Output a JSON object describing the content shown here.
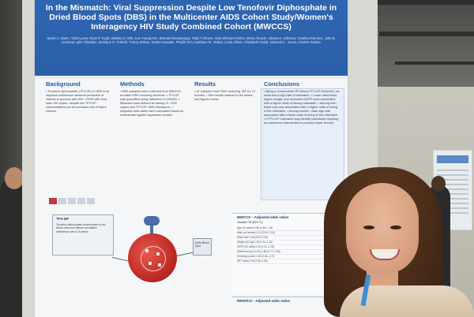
{
  "poster": {
    "title": "In the Mismatch: Viral Suppression Despite Low Tenofovir Diphosphate in Dried Blood Spots (DBS) in the Multicenter AIDS Cohort Study/Women's Interagency HIV Study Combined Cohort (MWCCS)",
    "authors": "Sarah C. Mann, Todd Lyons, Ryan P. Inglis, Mallory D. Witt, Sue-Young Kim, Bernard Macatangay, Todd T. Brown, Anita Dhanani-Delvo, Maria Alcaide, Adaora A. Adimora, Catalina Ramirez, Julie B. Dumond, Igho Ofotokun, Monique R. Cottrell, Tracey Wilson, Stefan Kaeplan, Phyllis Tien, Kathleen M. Weber, Linda Allison, Elizabeth Golub, Deborah L. Jones, Charles Rabkin",
    "sections": {
      "background": {
        "heading": "Background",
        "body": "• Tenofovir diphosphate (TFV-DP) in DBS is an objective adherence measure predictive of viremia in persons with HIV. • PWH with viral load <50 copies, despite low TFV-DP concentrations are at increased risk of future viremia."
      },
      "methods": {
        "heading": "Methods",
        "body": "• DBS samples were collected from MWCCS enrollee PWH receiving tenofovir. • TFV-DP was quantified using validated LC-MS/MS. • Mismatch was defined as having VL <200 copies and TFV-DP <800 fmol/punch. • Adjusted odds ratios were calculated based on multivariate logistic regression models."
      },
      "results": {
        "heading": "Results",
        "body": "• 87 samples from PWH receiving TAF for 12 months. • See results outlined in the tables and figures below."
      },
      "conclusions": {
        "heading": "Conclusions",
        "body": "• Being a conservative PK-based TFV-DP threshold, we observed a high rate of mismatch. • Lower adherence, higher weight, and increased eGFR were associated with a higher odds of having mismatch. • Among men, black race was associated with a higher odds of being in the mismatch. • Among women, older age was associated with a lower odds of being in the mismatch. • If TFV-DP mismatch may identify individuals requiring an adherence intervention to prevent future viremia."
      }
    },
    "diagram": {
      "frame_title": "TFV-DP",
      "frame_text": "Tenofovir diphosphate accumulates in red blood cells and reflects cumulative adherence over 6–8 weeks",
      "side_box_text": "Dried Blood Spot"
    },
    "table1": {
      "title": "MWCCS – Adjusted odds ratios",
      "header": "Variable                     OR (95% CI)",
      "rows": [
        "Age (10 years)          0.98 (0.84–1.15)",
        "Male (vs female)        1.12 (0.62–2.04)",
        "Black race              1.48 (0.91–2.40)",
        "Weight (10 kg)          1.18 (1.04–1.34)",
        "eGFR (10 units)         1.09 (1.01–1.18)",
        "Adherence (per 10%)     0.86 (0.77–0.96)",
        "Smoking current         1.05 (0.64–1.73)",
        "ART class               0.94 (0.55–1.60)"
      ]
    },
    "table2": {
      "title": "WIHS/CS – Adjusted odds ratios"
    }
  }
}
